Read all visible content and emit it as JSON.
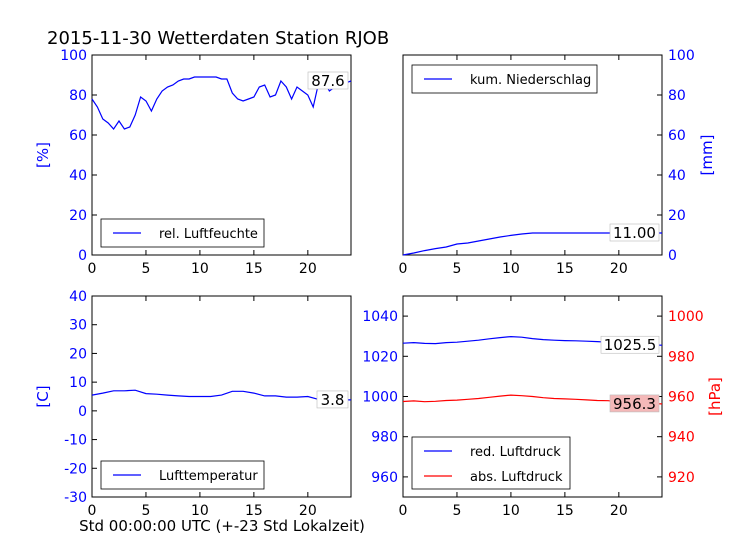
{
  "title": "2015-11-30 Wetterdaten Station RJOB",
  "xlabel": "Std 00:00:00 UTC (+-23 Std Lokalzeit)",
  "colors": {
    "blue": "#0000ff",
    "red": "#ff0000",
    "pink_box": "#f4b8b8"
  },
  "chart_data": [
    {
      "type": "line",
      "name": "humidity",
      "ylabel": "[%]",
      "ylabel_color": "#0000ff",
      "axis_side": "left",
      "xlim": [
        0,
        24
      ],
      "ylim": [
        0,
        100
      ],
      "xticks": [
        0,
        5,
        10,
        15,
        20
      ],
      "yticks": [
        0,
        20,
        40,
        60,
        80,
        100
      ],
      "legend": {
        "position": "bottom-left",
        "entries": [
          "rel. Luftfeuchte"
        ]
      },
      "last_value_label": "87.6",
      "series": [
        {
          "name": "rel. Luftfeuchte",
          "color": "#0000ff",
          "x": [
            0,
            0.5,
            1,
            1.5,
            2,
            2.5,
            3,
            3.5,
            4,
            4.5,
            5,
            5.5,
            6,
            6.5,
            7,
            7.5,
            8,
            8.5,
            9,
            9.5,
            10,
            10.5,
            11,
            11.5,
            12,
            12.5,
            13,
            13.5,
            14,
            14.5,
            15,
            15.5,
            16,
            16.5,
            17,
            17.5,
            18,
            18.5,
            19,
            19.5,
            20,
            20.5,
            21,
            21.5,
            22,
            22.5,
            23,
            23.5,
            24
          ],
          "y": [
            78,
            74,
            68,
            66,
            63,
            67,
            63,
            64,
            70,
            79,
            77,
            72,
            78,
            82,
            84,
            85,
            87,
            88,
            88,
            89,
            89,
            89,
            89,
            89,
            88,
            88,
            81,
            78,
            77,
            78,
            79,
            84,
            85,
            79,
            80,
            87,
            84,
            78,
            84,
            82,
            80,
            74,
            86,
            87,
            82,
            84,
            88,
            86,
            87
          ]
        }
      ]
    },
    {
      "type": "line",
      "name": "precipitation",
      "ylabel": "[mm]",
      "ylabel_color": "#0000ff",
      "axis_side": "right",
      "xlim": [
        0,
        24
      ],
      "ylim": [
        0,
        100
      ],
      "xticks": [
        0,
        5,
        10,
        15,
        20
      ],
      "yticks": [
        0,
        20,
        40,
        60,
        80,
        100
      ],
      "legend": {
        "position": "top-left",
        "entries": [
          "kum. Niederschlag"
        ]
      },
      "last_value_label": "11.00",
      "series": [
        {
          "name": "kum. Niederschlag",
          "color": "#0000ff",
          "x": [
            0,
            1,
            2,
            3,
            4,
            5,
            6,
            7,
            8,
            9,
            10,
            11,
            12,
            13,
            14,
            15,
            16,
            17,
            18,
            19,
            20,
            21,
            22,
            23,
            24
          ],
          "y": [
            0,
            1,
            2.2,
            3.2,
            4,
            5.5,
            6,
            7,
            8,
            9,
            9.8,
            10.5,
            11,
            11,
            11,
            11,
            11,
            11,
            11,
            11,
            11,
            11,
            11,
            11,
            11
          ]
        }
      ]
    },
    {
      "type": "line",
      "name": "temperature",
      "ylabel": "[C]",
      "ylabel_color": "#0000ff",
      "axis_side": "left",
      "xlim": [
        0,
        24
      ],
      "ylim": [
        -30,
        40
      ],
      "xticks": [
        0,
        5,
        10,
        15,
        20
      ],
      "yticks": [
        -30,
        -20,
        -10,
        0,
        10,
        20,
        30,
        40
      ],
      "legend": {
        "position": "bottom-left",
        "entries": [
          "Lufttemperatur"
        ]
      },
      "last_value_label": "3.8",
      "series": [
        {
          "name": "Lufttemperatur",
          "color": "#0000ff",
          "x": [
            0,
            1,
            2,
            3,
            4,
            5,
            6,
            7,
            8,
            9,
            10,
            11,
            12,
            13,
            14,
            15,
            16,
            17,
            18,
            19,
            20,
            21,
            22,
            23,
            24
          ],
          "y": [
            5.5,
            6.2,
            7,
            7,
            7.2,
            6,
            5.8,
            5.5,
            5.2,
            5,
            5,
            5,
            5.5,
            6.8,
            6.8,
            6.2,
            5.2,
            5.2,
            4.8,
            4.8,
            5,
            4,
            3.8,
            3.8,
            3.8
          ]
        }
      ]
    },
    {
      "type": "line",
      "name": "pressure",
      "ylabel": "[hPa]",
      "ylabel_color": "#ff0000",
      "axis_side": "both",
      "xlim": [
        0,
        24
      ],
      "ylim_left": [
        950,
        1050
      ],
      "ylim_right": [
        910,
        1010
      ],
      "xticks": [
        0,
        5,
        10,
        15,
        20
      ],
      "yticks_left": [
        960,
        980,
        1000,
        1020,
        1040
      ],
      "yticks_right": [
        920,
        940,
        960,
        980,
        1000
      ],
      "legend": {
        "position": "bottom-left",
        "entries": [
          "red. Luftdruck",
          "abs. Luftdruck"
        ]
      },
      "last_value_labels": [
        "1025.5",
        "956.3"
      ],
      "series": [
        {
          "name": "red. Luftdruck",
          "color": "#0000ff",
          "axis": "left",
          "x": [
            0,
            1,
            2,
            3,
            4,
            5,
            6,
            7,
            8,
            9,
            10,
            11,
            12,
            13,
            14,
            15,
            16,
            17,
            18,
            19,
            20,
            21,
            22,
            23,
            24
          ],
          "y": [
            1026.5,
            1026.8,
            1026.4,
            1026.3,
            1026.8,
            1027,
            1027.5,
            1028,
            1028.7,
            1029.3,
            1029.8,
            1029.5,
            1028.8,
            1028.3,
            1028,
            1027.8,
            1027.7,
            1027.5,
            1027.3,
            1027,
            1026.8,
            1026.2,
            1025.8,
            1025.6,
            1025.5
          ]
        },
        {
          "name": "abs. Luftdruck",
          "color": "#ff0000",
          "axis": "right",
          "x": [
            0,
            1,
            2,
            3,
            4,
            5,
            6,
            7,
            8,
            9,
            10,
            11,
            12,
            13,
            14,
            15,
            16,
            17,
            18,
            19,
            20,
            21,
            22,
            23,
            24
          ],
          "y": [
            957.5,
            957.8,
            957.4,
            957.6,
            958,
            958.2,
            958.6,
            959,
            959.6,
            960.2,
            960.7,
            960.4,
            960,
            959.4,
            959,
            958.8,
            958.6,
            958.3,
            958,
            957.9,
            957.4,
            957,
            956.7,
            956.4,
            956.3
          ]
        }
      ]
    }
  ]
}
